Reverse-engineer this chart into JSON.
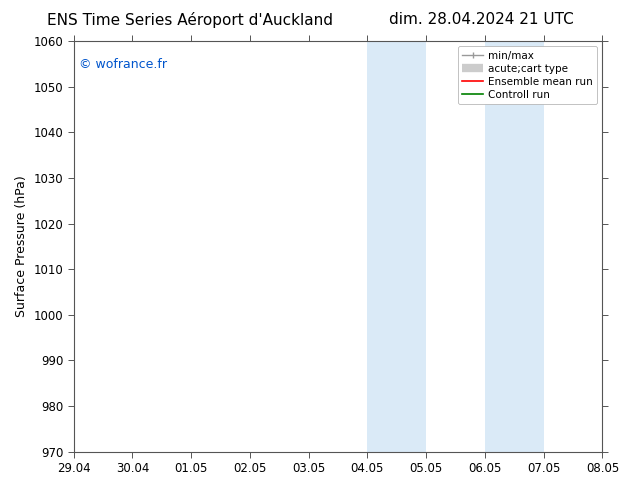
{
  "title_left": "ENS Time Series Aéroport d'Auckland",
  "title_right": "dim. 28.04.2024 21 UTC",
  "ylabel": "Surface Pressure (hPa)",
  "watermark": "© wofrance.fr",
  "watermark_color": "#0055cc",
  "ylim": [
    970,
    1060
  ],
  "yticks": [
    970,
    980,
    990,
    1000,
    1010,
    1020,
    1030,
    1040,
    1050,
    1060
  ],
  "xtick_labels": [
    "29.04",
    "30.04",
    "01.05",
    "02.05",
    "03.05",
    "04.05",
    "05.05",
    "06.05",
    "07.05",
    "08.05"
  ],
  "xtick_positions": [
    0,
    1,
    2,
    3,
    4,
    5,
    6,
    7,
    8,
    9
  ],
  "xmin": 0,
  "xmax": 9,
  "shaded_regions": [
    {
      "xmin": 5,
      "xmax": 6,
      "color": "#daeaf7"
    },
    {
      "xmin": 7,
      "xmax": 8,
      "color": "#daeaf7"
    }
  ],
  "bg_color": "#ffffff",
  "plot_bg_color": "#ffffff",
  "grid_color": "#bbbbbb",
  "legend_entries": [
    {
      "label": "min/max",
      "color": "#999999",
      "lw": 1.0
    },
    {
      "label": "acute;cart type",
      "color": "#cccccc",
      "lw": 6
    },
    {
      "label": "Ensemble mean run",
      "color": "#ff0000",
      "lw": 1.2
    },
    {
      "label": "Controll run",
      "color": "#008000",
      "lw": 1.2
    }
  ],
  "title_fontsize": 11,
  "label_fontsize": 9,
  "tick_fontsize": 8.5,
  "watermark_fontsize": 9
}
